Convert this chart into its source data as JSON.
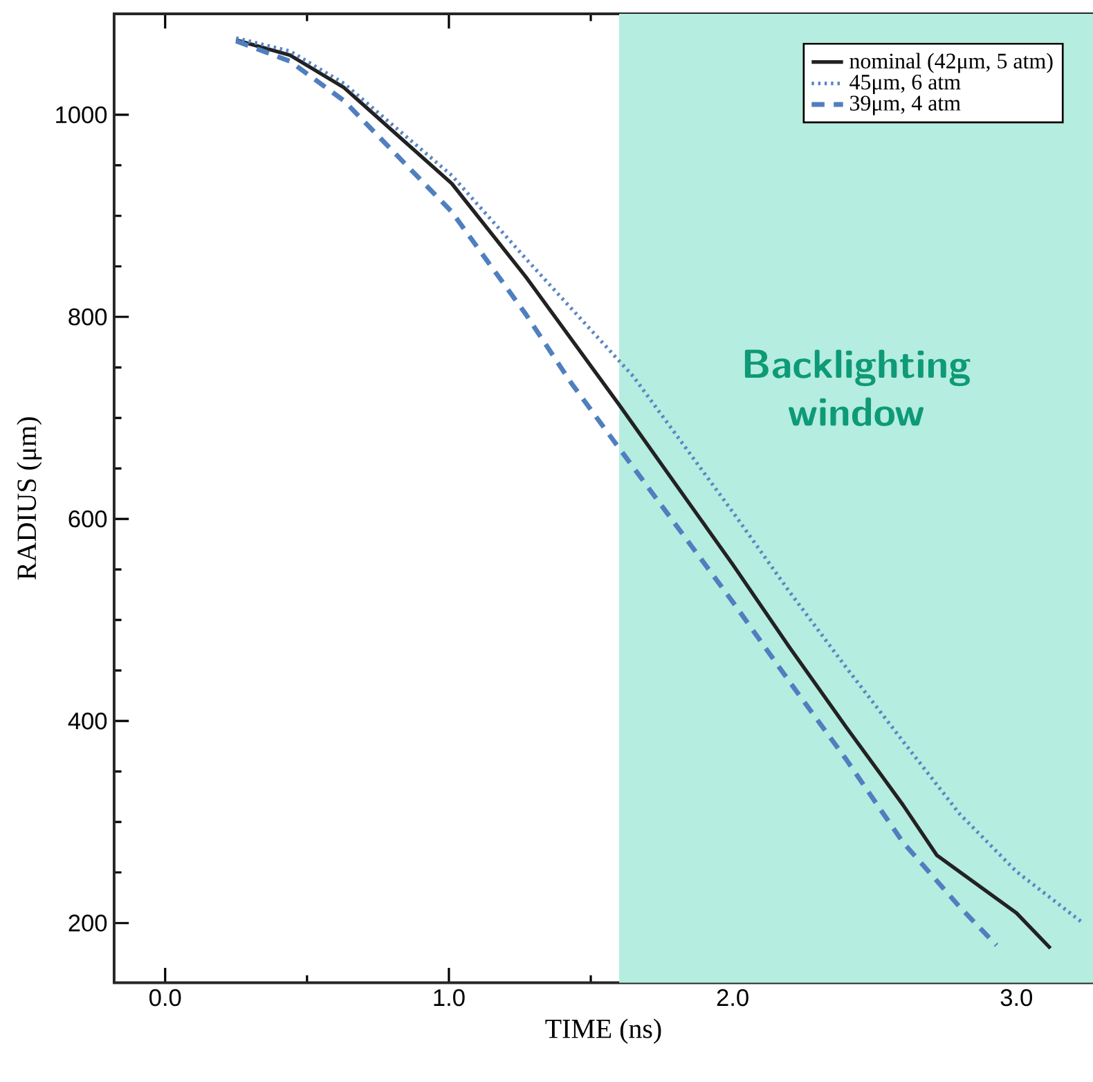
{
  "chart_data": {
    "type": "line",
    "xlabel": "TIME (ns)",
    "ylabel": "RADIUS (μm)",
    "xlim": [
      -0.18,
      3.27
    ],
    "ylim": [
      141,
      1100
    ],
    "xticks": [
      {
        "value": 0,
        "label": "0.0"
      },
      {
        "value": 1,
        "label": "1.0"
      },
      {
        "value": 2,
        "label": "2.0"
      },
      {
        "value": 3,
        "label": "3.0"
      }
    ],
    "yticks": [
      200,
      400,
      600,
      800,
      1000
    ],
    "grid": false,
    "legend": "top right",
    "series": [
      {
        "name": "nominal (42μm, 5 atm)",
        "color": "#222222",
        "line_style": "solid",
        "x": [
          0.25,
          0.44,
          0.63,
          1.01,
          1.27,
          1.6,
          1.8,
          2.0,
          2.2,
          2.4,
          2.6,
          2.72,
          3.0,
          3.12
        ],
        "values": [
          1074,
          1059,
          1027,
          932,
          840,
          713,
          634,
          555,
          473,
          394,
          317,
          267,
          210,
          175
        ]
      },
      {
        "name": "45μm, 6 atm",
        "color": "#5b86c5",
        "line_style": "dotted",
        "x": [
          0.25,
          0.44,
          0.63,
          1.01,
          1.27,
          1.65,
          2.0,
          2.2,
          2.4,
          2.6,
          2.8,
          3.0,
          3.23
        ],
        "values": [
          1076,
          1063,
          1031,
          940,
          858,
          741,
          607,
          528,
          453,
          380,
          308,
          251,
          201
        ]
      },
      {
        "name": "39μm, 4 atm",
        "color": "#4f7fbf",
        "line_style": "dashed",
        "x": [
          0.25,
          0.44,
          0.63,
          1.01,
          1.27,
          1.43,
          1.6,
          1.8,
          2.0,
          2.2,
          2.4,
          2.6,
          2.8,
          2.93
        ],
        "values": [
          1073,
          1053,
          1014,
          904,
          803,
          735,
          670,
          594,
          518,
          439,
          362,
          280,
          216,
          178
        ]
      }
    ],
    "bands": [
      {
        "axis": "x",
        "from": 1.6,
        "to": 3.27,
        "label": "Backlighting window",
        "color": "#b5ede0"
      }
    ]
  }
}
